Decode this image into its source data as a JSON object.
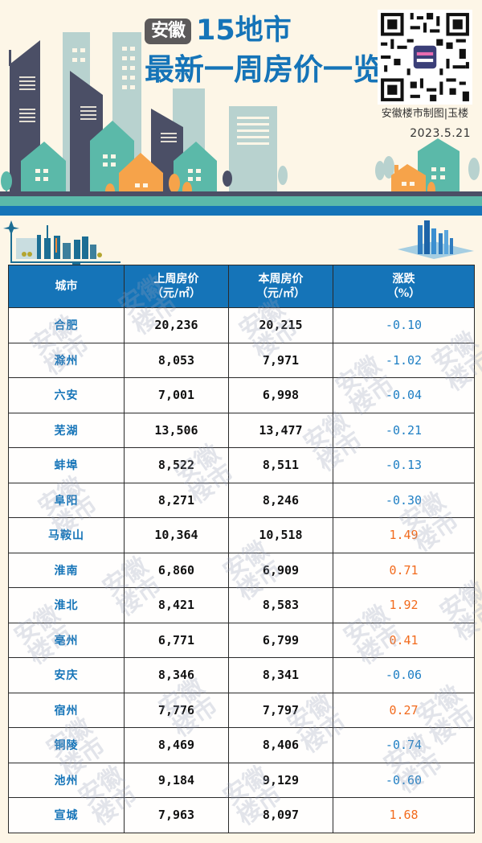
{
  "header": {
    "badge": "安徽",
    "title_line1": "15地市",
    "title_line2": "最新一周房价一览",
    "credit": "安徽楼市制图|玉楼",
    "date": "2023.5.21",
    "qr_center_label": "安徽楼市"
  },
  "colors": {
    "brand_blue": "#1574b8",
    "decrease": "#1f7fc4",
    "increase": "#f26b1d",
    "background": "#fdf6e7",
    "badge_gray": "#5c5a5b"
  },
  "table": {
    "headers": {
      "city": "城市",
      "last_week": "上周房价",
      "last_week_unit": "（元/㎡）",
      "this_week": "本周房价",
      "this_week_unit": "（元/㎡）",
      "change": "涨跌",
      "change_unit": "（%）"
    },
    "rows": [
      {
        "city": "合肥",
        "last_week": "20,236",
        "this_week": "20,215",
        "change": "-0.10",
        "dir": "down"
      },
      {
        "city": "滁州",
        "last_week": "8,053",
        "this_week": "7,971",
        "change": "-1.02",
        "dir": "down"
      },
      {
        "city": "六安",
        "last_week": "7,001",
        "this_week": "6,998",
        "change": "-0.04",
        "dir": "down"
      },
      {
        "city": "芜湖",
        "last_week": "13,506",
        "this_week": "13,477",
        "change": "-0.21",
        "dir": "down"
      },
      {
        "city": "蚌埠",
        "last_week": "8,522",
        "this_week": "8,511",
        "change": "-0.13",
        "dir": "down"
      },
      {
        "city": "阜阳",
        "last_week": "8,271",
        "this_week": "8,246",
        "change": "-0.30",
        "dir": "down"
      },
      {
        "city": "马鞍山",
        "last_week": "10,364",
        "this_week": "10,518",
        "change": "1.49",
        "dir": "up"
      },
      {
        "city": "淮南",
        "last_week": "6,860",
        "this_week": "6,909",
        "change": "0.71",
        "dir": "up"
      },
      {
        "city": "淮北",
        "last_week": "8,421",
        "this_week": "8,583",
        "change": "1.92",
        "dir": "up"
      },
      {
        "city": "亳州",
        "last_week": "6,771",
        "this_week": "6,799",
        "change": "0.41",
        "dir": "up"
      },
      {
        "city": "安庆",
        "last_week": "8,346",
        "this_week": "8,341",
        "change": "-0.06",
        "dir": "down"
      },
      {
        "city": "宿州",
        "last_week": "7,776",
        "this_week": "7,797",
        "change": "0.27",
        "dir": "up"
      },
      {
        "city": "铜陵",
        "last_week": "8,469",
        "this_week": "8,406",
        "change": "-0.74",
        "dir": "down"
      },
      {
        "city": "池州",
        "last_week": "9,184",
        "this_week": "9,129",
        "change": "-0.60",
        "dir": "down"
      },
      {
        "city": "宣城",
        "last_week": "7,963",
        "this_week": "8,097",
        "change": "1.68",
        "dir": "up"
      }
    ]
  },
  "watermark": {
    "text": "安徽楼市"
  }
}
